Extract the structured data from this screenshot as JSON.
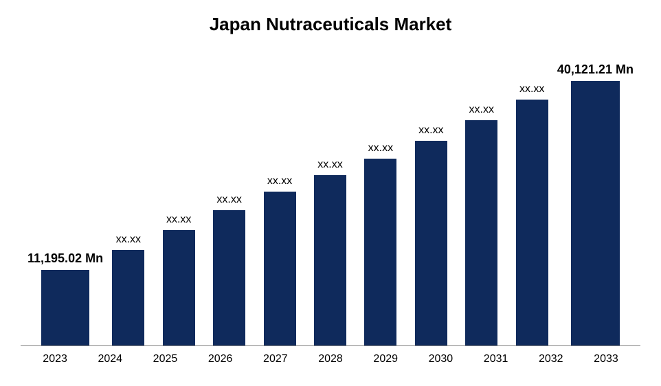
{
  "chart": {
    "type": "bar",
    "title": "Japan Nutraceuticals Market",
    "title_fontsize": 26,
    "title_fontweight": "bold",
    "title_color": "#000000",
    "background_color": "#ffffff",
    "bar_color": "#0f2a5c",
    "axis_line_color": "#808080",
    "label_color": "#000000",
    "label_fontsize": 16,
    "data_label_fontsize": 16,
    "bold_label_fontsize": 18,
    "bar_width_pct": 64,
    "ylim": [
      0,
      42000
    ],
    "categories": [
      "2023",
      "2024",
      "2025",
      "2026",
      "2027",
      "2028",
      "2029",
      "2030",
      "2031",
      "2032",
      "2033"
    ],
    "values": [
      11195.02,
      14200,
      17100,
      20100,
      22800,
      25300,
      27700,
      30400,
      33400,
      36500,
      40121.21
    ],
    "display_labels": [
      "11,195.02 Mn",
      "xx.xx",
      "xx.xx",
      "xx.xx",
      "xx.xx",
      "xx.xx",
      "xx.xx",
      "xx.xx",
      "xx.xx",
      "xx.xx",
      "40,121.21 Mn"
    ],
    "label_bold": [
      true,
      false,
      false,
      false,
      false,
      false,
      false,
      false,
      false,
      false,
      true
    ]
  }
}
